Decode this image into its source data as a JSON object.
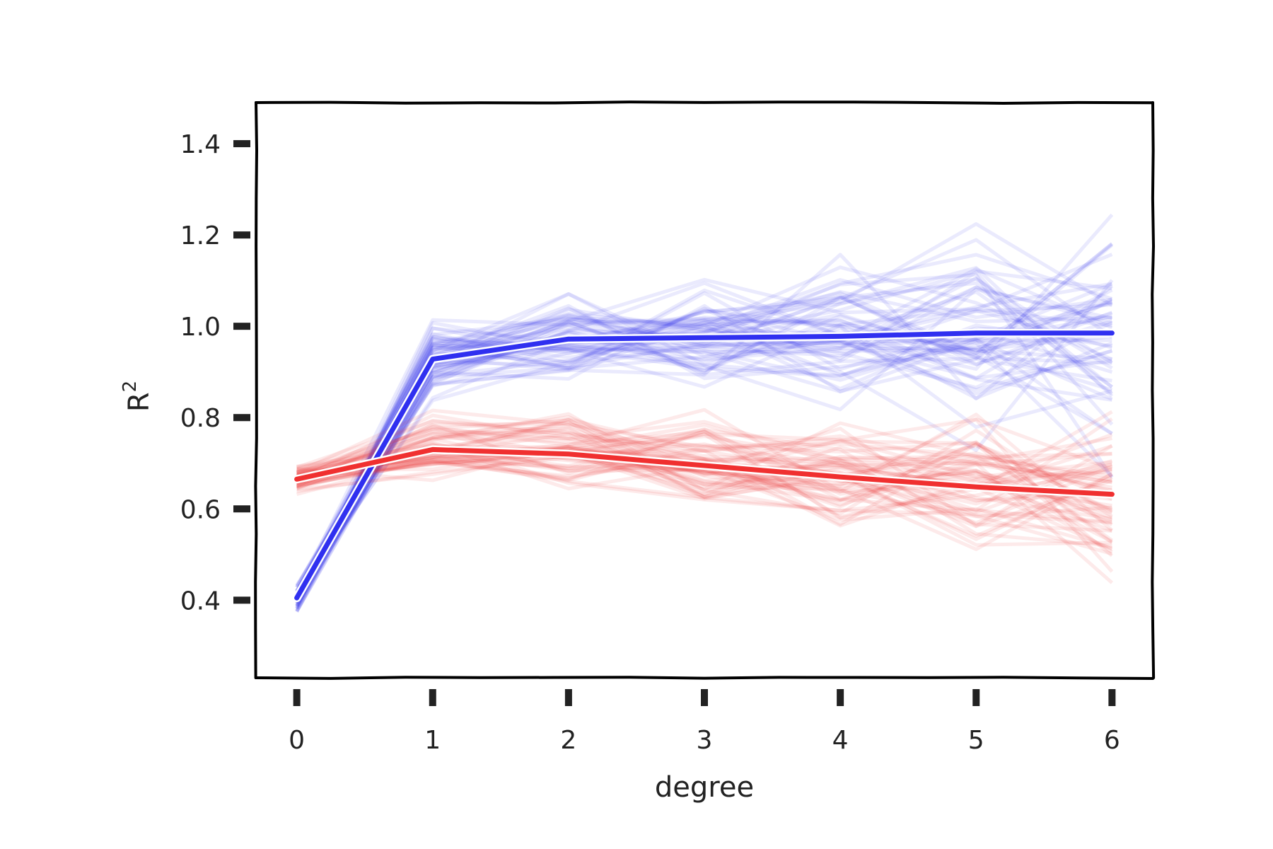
{
  "chart_data": {
    "type": "line",
    "title": "",
    "xlabel": "degree",
    "ylabel": "R",
    "ylabel_sup": "2",
    "x": [
      0,
      1,
      2,
      3,
      4,
      5,
      6
    ],
    "xticks": [
      "0",
      "1",
      "2",
      "3",
      "4",
      "5",
      "6"
    ],
    "yticks": [
      "0.4",
      "0.6",
      "0.8",
      "1.0",
      "1.2",
      "1.4"
    ],
    "ytick_values": [
      0.4,
      0.6,
      0.8,
      1.0,
      1.2,
      1.4
    ],
    "xlim": [
      -0.3,
      6.3
    ],
    "ylim": [
      0.23,
      1.49
    ],
    "grid": false,
    "style": "hand-drawn (xkcd)",
    "series": [
      {
        "color": "#3030f0",
        "values": [
          0.405,
          0.928,
          0.972,
          0.975,
          0.978,
          0.985,
          0.985
        ]
      },
      {
        "color": "#f03030",
        "values": [
          0.665,
          0.73,
          0.72,
          0.695,
          0.67,
          0.648,
          0.632
        ]
      }
    ],
    "band_series": [
      {
        "color": "#3030f0",
        "count": 60,
        "spread": [
          0.02,
          0.05,
          0.07,
          0.08,
          0.1,
          0.14,
          0.18
        ]
      },
      {
        "color": "#f03030",
        "count": 60,
        "spread": [
          0.025,
          0.05,
          0.06,
          0.07,
          0.09,
          0.1,
          0.12
        ]
      }
    ]
  }
}
